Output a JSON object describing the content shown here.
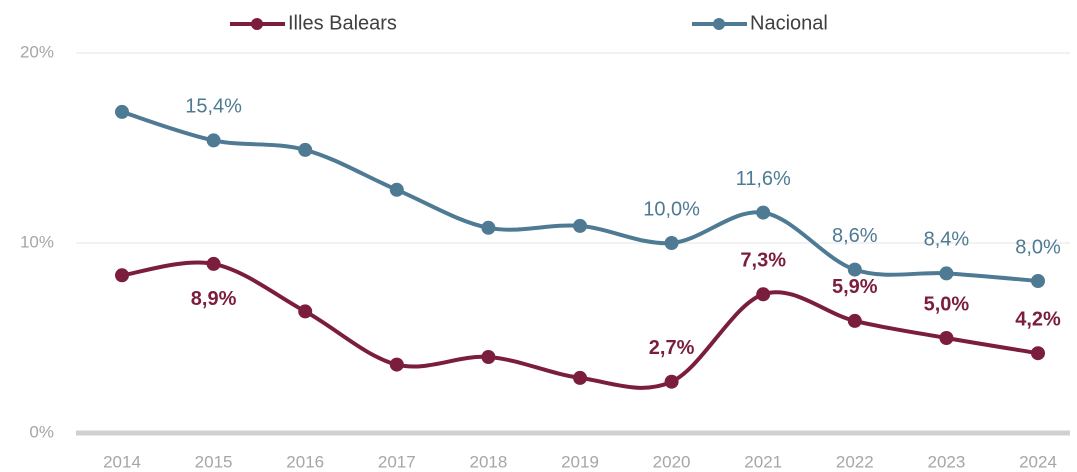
{
  "chart_data": {
    "type": "line",
    "x": [
      "2014",
      "2015",
      "2016",
      "2017",
      "2018",
      "2019",
      "2020",
      "2021",
      "2022",
      "2023",
      "2024"
    ],
    "series": [
      {
        "name": "Illes Balears",
        "color": "#7b1e3e",
        "values": [
          8.3,
          8.9,
          6.4,
          3.6,
          4.0,
          2.9,
          2.7,
          7.3,
          5.9,
          5.0,
          4.2
        ],
        "value_labels": [
          null,
          "8,9%",
          null,
          null,
          null,
          null,
          "2,7%",
          "7,3%",
          "5,9%",
          "5,0%",
          "4,2%"
        ]
      },
      {
        "name": "Nacional",
        "color": "#4e7a93",
        "values": [
          16.9,
          15.4,
          14.9,
          12.8,
          10.8,
          10.9,
          10.0,
          11.6,
          8.6,
          8.4,
          8.0
        ],
        "value_labels": [
          null,
          "15,4%",
          null,
          null,
          null,
          null,
          "10,0%",
          "11,6%",
          "8,6%",
          "8,4%",
          "8,0%"
        ]
      }
    ],
    "ylim": [
      0,
      20
    ],
    "yticks": [
      {
        "value": 0,
        "label": "0%"
      },
      {
        "value": 10,
        "label": "10%"
      },
      {
        "value": 20,
        "label": "20%"
      }
    ],
    "grid": true,
    "legend": "top"
  }
}
